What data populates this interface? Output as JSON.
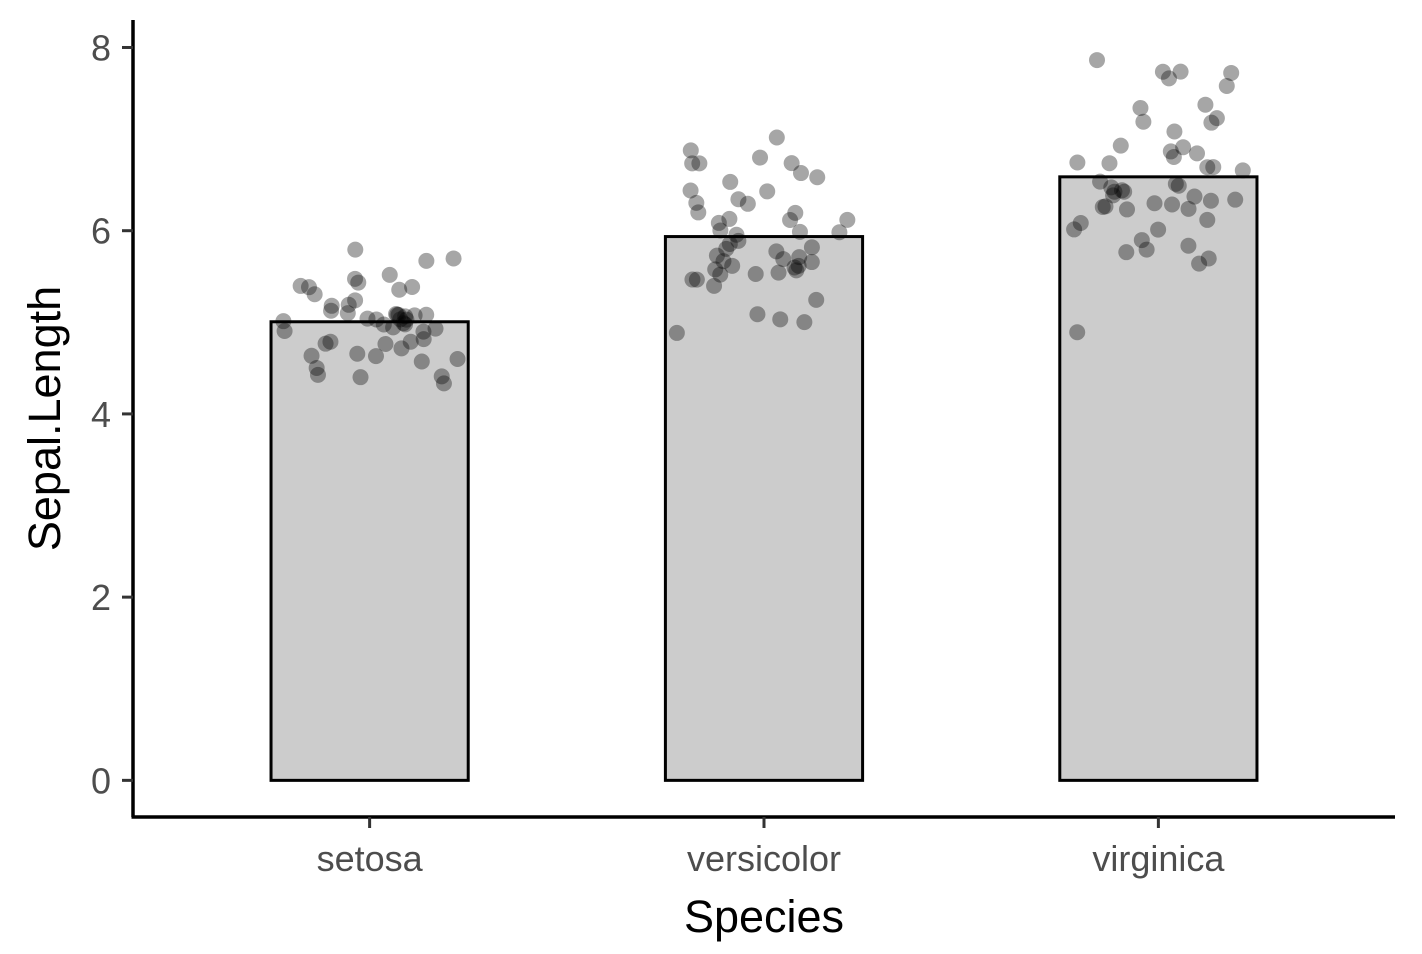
{
  "chart_data": {
    "type": "bar",
    "title": "",
    "xlabel": "Species",
    "ylabel": "Sepal.Length",
    "categories": [
      "setosa",
      "versicolor",
      "virginica"
    ],
    "values": [
      5.006,
      5.936,
      6.588
    ],
    "ylim": [
      -0.4,
      8.3
    ],
    "yticks": [
      0,
      2,
      4,
      6,
      8
    ],
    "grid": false,
    "legend": "none",
    "points_alpha": 0.35,
    "points": [
      [
        5.1,
        4.9,
        4.7,
        4.6,
        5.0,
        5.4,
        4.6,
        5.0,
        4.4,
        4.9,
        5.4,
        4.8,
        4.8,
        4.3,
        5.8,
        5.7,
        5.4,
        5.1,
        5.7,
        5.1,
        5.4,
        5.1,
        4.6,
        5.1,
        4.8,
        5.0,
        5.0,
        5.2,
        5.2,
        4.7,
        4.8,
        5.4,
        5.2,
        5.5,
        4.9,
        5.0,
        5.5,
        4.9,
        4.4,
        5.1,
        5.0,
        4.5,
        4.4,
        5.0,
        5.1,
        4.8,
        5.1,
        4.6,
        5.3,
        5.0
      ],
      [
        7.0,
        6.4,
        6.9,
        5.5,
        6.5,
        5.7,
        6.3,
        4.9,
        6.6,
        5.2,
        5.0,
        5.9,
        6.0,
        6.1,
        5.6,
        6.7,
        5.6,
        5.8,
        6.2,
        5.6,
        5.9,
        6.1,
        6.3,
        6.1,
        6.4,
        6.6,
        6.8,
        6.7,
        6.0,
        5.7,
        5.5,
        5.5,
        5.8,
        6.0,
        5.4,
        6.0,
        6.7,
        6.3,
        5.6,
        5.5,
        5.5,
        6.1,
        5.8,
        5.0,
        5.6,
        5.7,
        5.7,
        6.2,
        5.1,
        5.7
      ],
      [
        6.3,
        5.8,
        7.1,
        6.3,
        6.5,
        7.6,
        4.9,
        7.3,
        6.7,
        7.2,
        6.5,
        6.4,
        6.8,
        5.7,
        5.8,
        6.4,
        6.5,
        7.7,
        7.7,
        6.0,
        6.9,
        5.6,
        7.7,
        6.3,
        6.7,
        7.2,
        6.2,
        6.1,
        6.4,
        7.2,
        7.4,
        7.9,
        6.4,
        6.3,
        6.1,
        7.7,
        6.3,
        6.4,
        6.0,
        6.9,
        6.7,
        6.9,
        5.8,
        6.8,
        6.7,
        6.7,
        6.3,
        6.5,
        6.2,
        5.9
      ]
    ],
    "colors": {
      "bar_fill": "#cccccc",
      "bar_stroke": "#000000",
      "point": "#000000",
      "axis": "#000000",
      "tick_label": "#4d4d4d"
    }
  }
}
